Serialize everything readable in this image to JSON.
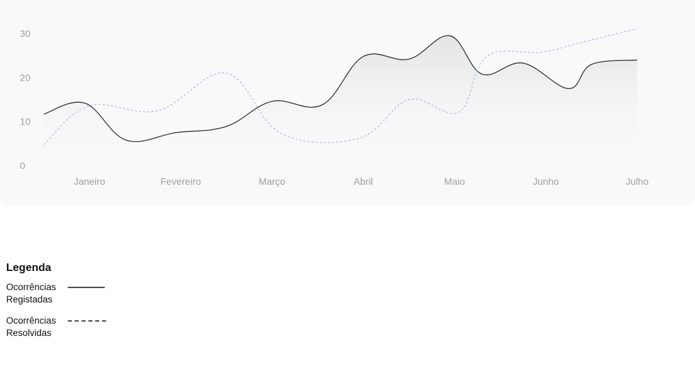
{
  "chart_data": {
    "type": "line",
    "categories": [
      "Janeiro",
      "Fevereiro",
      "Março",
      "Abril",
      "Maio",
      "Junho",
      "Julho"
    ],
    "y_ticks": [
      0,
      10,
      20,
      30
    ],
    "ylim": [
      0,
      32
    ],
    "grid": false,
    "series": [
      {
        "name": "Ocorrências Registadas",
        "style": "solid",
        "color": "#333333",
        "x": [
          0.0,
          0.45,
          0.9,
          1.45,
          2.0,
          2.5,
          3.05,
          3.5,
          4.0,
          4.45,
          4.8,
          5.25,
          5.75,
          6.0,
          6.5
        ],
        "values": [
          11.7,
          14.2,
          5.8,
          7.5,
          8.9,
          14.6,
          13.8,
          24.8,
          24.2,
          29.5,
          20.8,
          23.3,
          17.5,
          23.0,
          24.0
        ]
      },
      {
        "name": "Ocorrências Resolvidas",
        "style": "dashed",
        "color": "#a9b8ee",
        "x": [
          0.0,
          0.5,
          1.25,
          2.0,
          2.6,
          3.45,
          4.0,
          4.55,
          4.85,
          5.45,
          5.95,
          6.5
        ],
        "values": [
          4.8,
          13.6,
          12.5,
          21.0,
          7.3,
          6.2,
          15.0,
          12.2,
          24.8,
          25.8,
          28.3,
          31.1
        ]
      }
    ]
  },
  "legend": {
    "title": "Legenda",
    "items": [
      {
        "line1": "Ocorrências",
        "line2": "Registadas",
        "style": "solid"
      },
      {
        "line1": "Ocorrências",
        "line2": "Resolvidas",
        "style": "dashed"
      }
    ]
  }
}
